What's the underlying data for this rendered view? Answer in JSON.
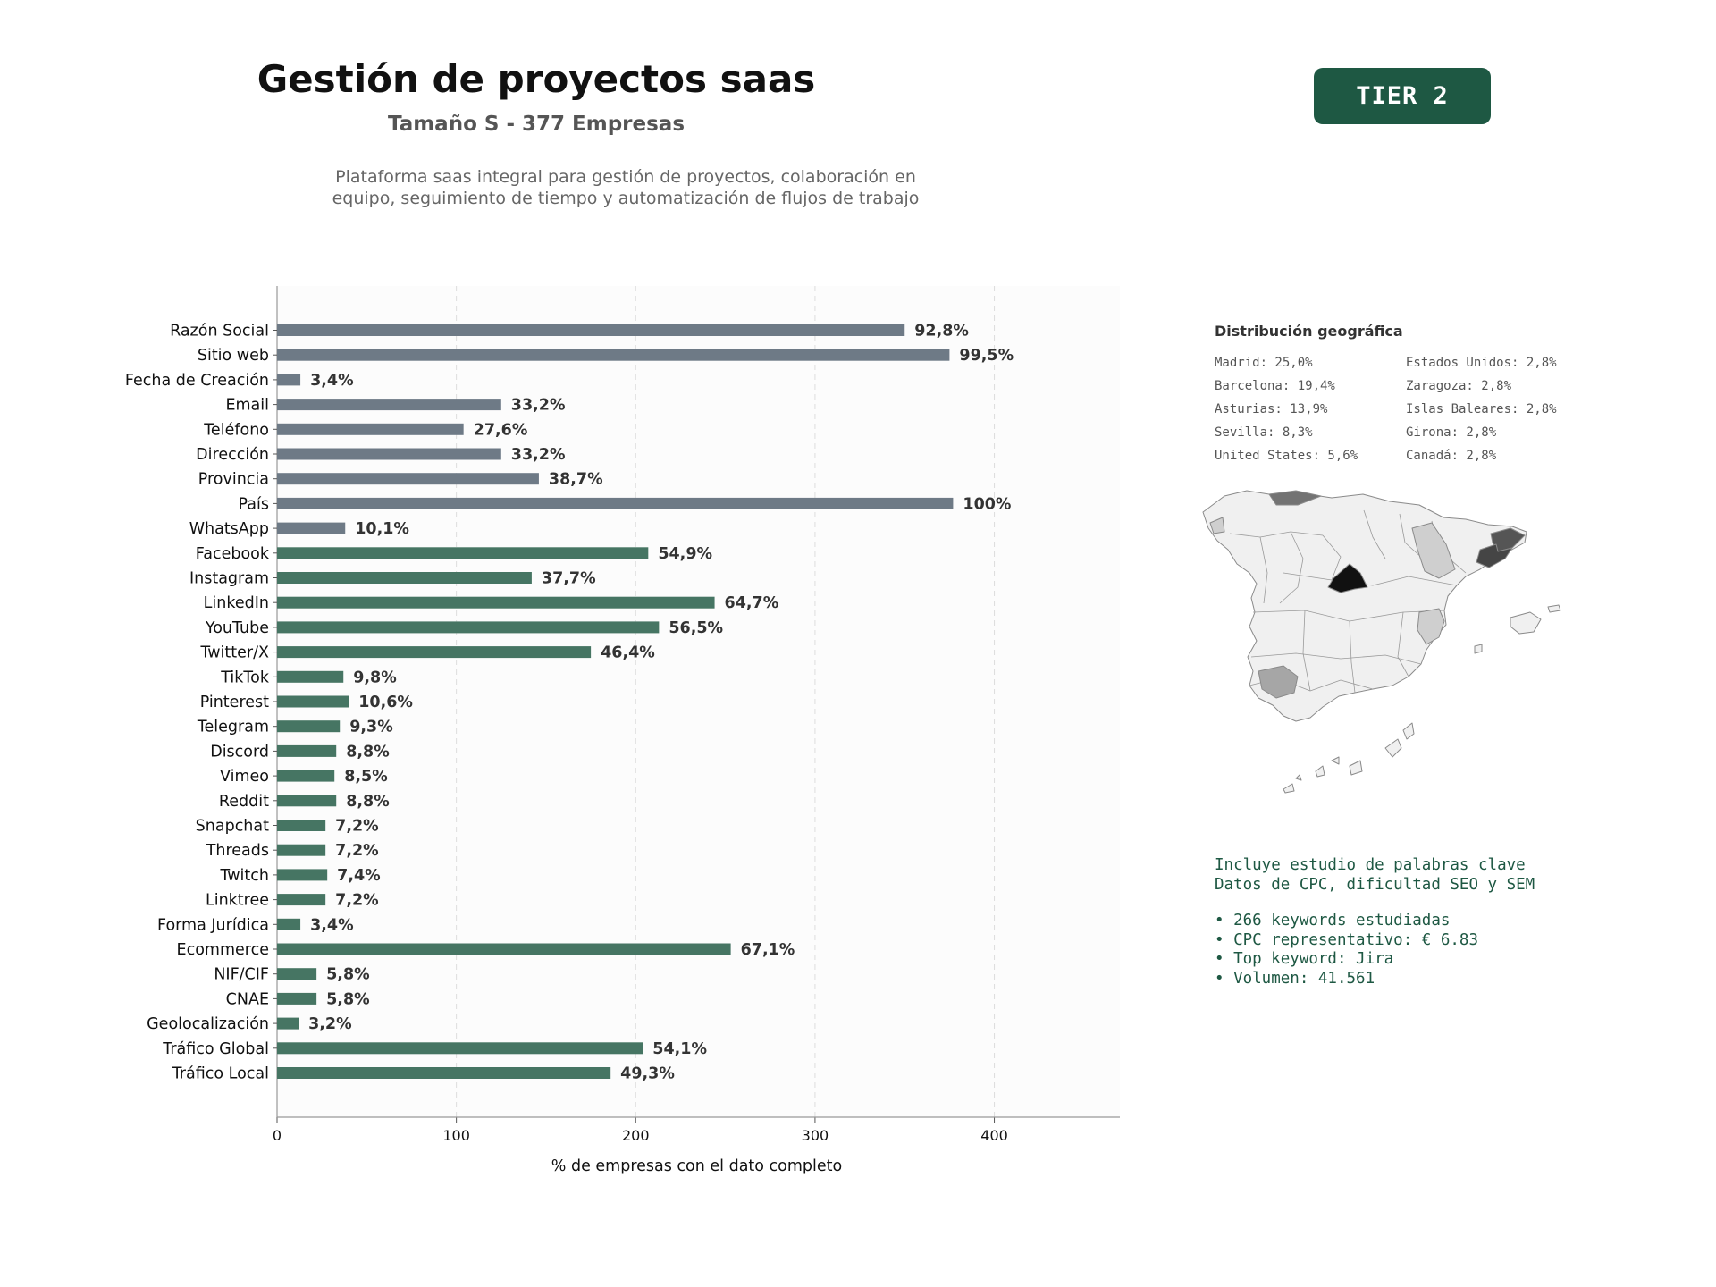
{
  "header": {
    "title": "Gestión de proyectos saas",
    "subtitle": "Tamaño S - 377 Empresas",
    "description_line1": "Plataforma saas integral para gestión de proyectos, colaboración en",
    "description_line2": "equipo, seguimiento de tiempo y automatización de flujos de trabajo",
    "tier": "TIER 2"
  },
  "colors": {
    "contact_bar": "#6e7a86",
    "social_bar": "#467563",
    "badge_bg": "#1e5843",
    "keyword_text": "#1e5843",
    "map_default": "#f0f0f0",
    "map_border": "#8a8a8a"
  },
  "chart_data": {
    "type": "bar",
    "orientation": "horizontal",
    "xlabel": "% de empresas con el dato completo",
    "xlim": [
      0,
      470
    ],
    "xticks": [
      0,
      100,
      200,
      300,
      400
    ],
    "grid": "vertical dashed",
    "categories": [
      "Razón Social",
      "Sitio web",
      "Fecha de Creación",
      "Email",
      "Teléfono",
      "Dirección",
      "Provincia",
      "País",
      "WhatsApp",
      "Facebook",
      "Instagram",
      "LinkedIn",
      "YouTube",
      "Twitter/X",
      "TikTok",
      "Pinterest",
      "Telegram",
      "Discord",
      "Vimeo",
      "Reddit",
      "Snapchat",
      "Threads",
      "Twitch",
      "Linktree",
      "Forma Jurídica",
      "Ecommerce",
      "NIF/CIF",
      "CNAE",
      "Geolocalización",
      "Tráfico Global",
      "Tráfico Local"
    ],
    "values": [
      350,
      375,
      13,
      125,
      104,
      125,
      146,
      377,
      38,
      207,
      142,
      244,
      213,
      175,
      37,
      40,
      35,
      33,
      32,
      33,
      27,
      27,
      28,
      27,
      13,
      253,
      22,
      22,
      12,
      204,
      186
    ],
    "labels": [
      "92,8%",
      "99,5%",
      "3,4%",
      "33,2%",
      "27,6%",
      "33,2%",
      "38,7%",
      "100%",
      "10,1%",
      "54,9%",
      "37,7%",
      "64,7%",
      "56,5%",
      "46,4%",
      "9,8%",
      "10,6%",
      "9,3%",
      "8,8%",
      "8,5%",
      "8,8%",
      "7,2%",
      "7,2%",
      "7,4%",
      "7,2%",
      "3,4%",
      "67,1%",
      "5,8%",
      "5,8%",
      "3,2%",
      "54,1%",
      "49,3%"
    ],
    "groups": [
      "contact",
      "contact",
      "contact",
      "contact",
      "contact",
      "contact",
      "contact",
      "contact",
      "contact",
      "social",
      "social",
      "social",
      "social",
      "social",
      "social",
      "social",
      "social",
      "social",
      "social",
      "social",
      "social",
      "social",
      "social",
      "social",
      "social",
      "social",
      "social",
      "social",
      "social",
      "social",
      "social"
    ]
  },
  "geo": {
    "title": "Distribución geográfica",
    "left": [
      "Madrid: 25,0%",
      "Barcelona: 19,4%",
      "Asturias: 13,9%",
      "Sevilla: 8,3%",
      "United States: 5,6%"
    ],
    "right": [
      "Estados Unidos: 2,8%",
      "Zaragoza: 2,8%",
      "Islas Baleares: 2,8%",
      "Girona: 2,8%",
      "Canadá: 2,8%"
    ]
  },
  "keywords": {
    "intro1": "Incluye estudio de palabras clave",
    "intro2": "Datos de CPC, dificultad SEO y SEM",
    "b1": "• 266 keywords estudiadas",
    "b2": "• CPC representativo: € 6.83",
    "b3": "• Top keyword: Jira",
    "b4": "• Volumen: 41.561"
  }
}
